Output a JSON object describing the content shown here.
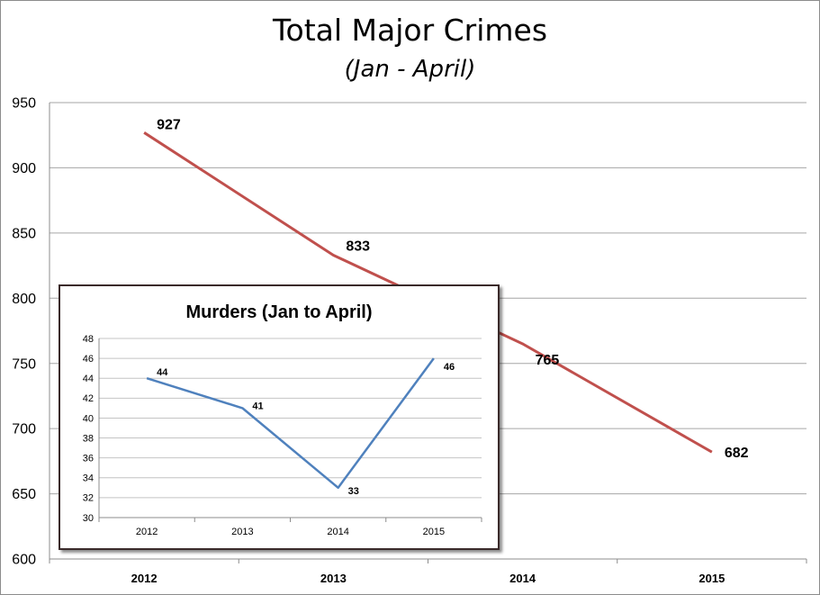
{
  "chart_data": [
    {
      "type": "line",
      "title": "Total Major Crimes",
      "subtitle": "(Jan - April)",
      "categories": [
        "2012",
        "2013",
        "2014",
        "2015"
      ],
      "series": [
        {
          "values": [
            927,
            833,
            765,
            682
          ],
          "data_labels": [
            "927",
            "833",
            "765",
            "682"
          ],
          "color": "#c0504d"
        }
      ],
      "ylim": [
        600,
        950
      ],
      "yticks": [
        "600",
        "650",
        "700",
        "750",
        "800",
        "850",
        "900",
        "950"
      ],
      "grid": true
    },
    {
      "type": "line",
      "title": "Murders (Jan to April)",
      "categories": [
        "2012",
        "2013",
        "2014",
        "2015"
      ],
      "series": [
        {
          "values": [
            44,
            41,
            33,
            46
          ],
          "data_labels": [
            "44",
            "41",
            "33",
            "46"
          ],
          "color": "#4f81bd"
        }
      ],
      "ylim": [
        30,
        48
      ],
      "yticks": [
        "30",
        "32",
        "34",
        "36",
        "38",
        "40",
        "42",
        "44",
        "46",
        "48"
      ],
      "grid": true
    }
  ]
}
